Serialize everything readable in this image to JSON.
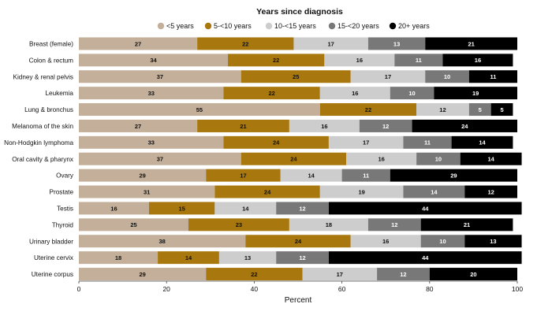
{
  "chart_data": {
    "type": "bar",
    "orientation": "horizontal",
    "stacked": true,
    "legend_title": "Years since diagnosis",
    "legend_position": "top",
    "xlabel": "Percent",
    "xlim": [
      0,
      100
    ],
    "xticks": [
      0,
      20,
      40,
      60,
      80,
      100
    ],
    "grid": false,
    "categories": [
      "Breast (female)",
      "Colon & rectum",
      "Kidney & renal pelvis",
      "Leukemia",
      "Lung & bronchus",
      "Melanoma of the skin",
      "Non-Hodgkin lymphoma",
      "Oral cavity & pharynx",
      "Ovary",
      "Prostate",
      "Testis",
      "Thyroid",
      "Urinary bladder",
      "Uterine cervix",
      "Uterine corpus"
    ],
    "series": [
      {
        "name": "<5 years",
        "color": "#c4b09a",
        "label_color": "#111111",
        "values": [
          27,
          34,
          37,
          33,
          55,
          27,
          33,
          37,
          29,
          31,
          16,
          25,
          38,
          18,
          29
        ]
      },
      {
        "name": "5-<10 years",
        "color": "#a8780f",
        "label_color": "#111111",
        "values": [
          22,
          22,
          25,
          22,
          22,
          21,
          24,
          24,
          17,
          24,
          15,
          23,
          24,
          14,
          22
        ]
      },
      {
        "name": "10-<15 years",
        "color": "#cdcdcd",
        "label_color": "#111111",
        "values": [
          17,
          16,
          17,
          16,
          12,
          16,
          17,
          16,
          14,
          19,
          14,
          18,
          16,
          13,
          17
        ]
      },
      {
        "name": "15-<20 years",
        "color": "#787878",
        "label_color": "#ffffff",
        "values": [
          13,
          11,
          10,
          10,
          5,
          12,
          11,
          10,
          11,
          14,
          12,
          12,
          10,
          12,
          12
        ]
      },
      {
        "name": "20+ years",
        "color": "#000000",
        "label_color": "#ffffff",
        "values": [
          21,
          16,
          11,
          19,
          5,
          24,
          14,
          14,
          29,
          12,
          44,
          21,
          13,
          44,
          20
        ]
      }
    ]
  }
}
